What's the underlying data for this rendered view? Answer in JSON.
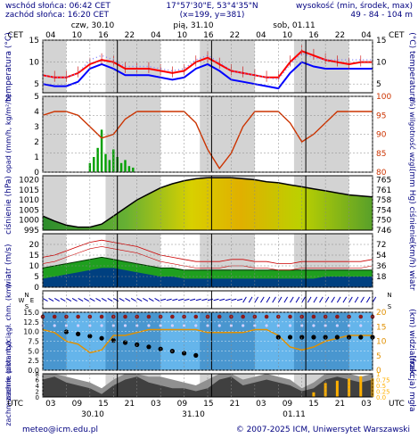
{
  "header": {
    "sunrise": "wschód słońca: 06:42 CET",
    "sunset": "zachód słońca: 16:20 CET",
    "coords": "17°57'30\"E, 53°4'35\"N",
    "grid": "(x=199, y=381)",
    "elev_label": "wysokość (min, środek, max)",
    "elev_values": "49 - 84 - 104 m"
  },
  "footer": {
    "email": "meteo@icm.edu.pl",
    "copyright": "© 2007-2025 ICM, Uniwersytet Warszawski"
  },
  "colors": {
    "night_band": "#d3d3d3",
    "temp_red": "#ff0000",
    "temp_blue": "#0000ff",
    "humidity": "#cc3300",
    "precip": "#00a000",
    "wind_fill": "#1f9f1f",
    "wind_dark": "#004080",
    "cloud_sky": "#4aa8e8",
    "visibility": "#e09000",
    "fog": "#ffb000"
  },
  "chart_data": [
    {
      "type": "line",
      "panel": "temperature",
      "title": "",
      "day_labels": [
        "czw, 30.10",
        "pią, 31.10",
        "sob, 01.11"
      ],
      "top_hours": [
        "04",
        "10",
        "16",
        "22",
        "04",
        "10",
        "16",
        "22",
        "04",
        "10",
        "16",
        "22",
        "04"
      ],
      "left_unit": "CET",
      "right_unit": "CET",
      "ylabel_left": "temperatura (°C)",
      "ylabel_right": "(°C) temperatura",
      "ylim": [
        3,
        15
      ],
      "yticks": [
        5,
        10,
        15
      ],
      "x_hours_from_start": [
        0,
        3,
        6,
        9,
        12,
        15,
        18,
        21,
        24,
        27,
        30,
        33,
        36,
        39,
        42,
        45,
        48,
        51,
        54,
        57,
        60,
        63,
        66,
        69,
        72,
        75,
        78,
        81,
        84
      ],
      "series": [
        {
          "name": "",
          "values": [
            7.0,
            6.5,
            6.5,
            7.5,
            9.5,
            10.5,
            10.0,
            8.5,
            8.5,
            8.5,
            8.0,
            7.5,
            8.0,
            10.0,
            11.0,
            9.5,
            8.0,
            7.5,
            7.0,
            6.5,
            6.5,
            10.0,
            12.5,
            11.5,
            10.5,
            10.0,
            9.5,
            10.0,
            10.0
          ]
        },
        {
          "name": "",
          "values": [
            5.0,
            4.5,
            4.5,
            5.5,
            8.5,
            9.5,
            8.5,
            7.0,
            7.0,
            7.0,
            6.5,
            6.0,
            6.5,
            8.5,
            9.5,
            8.0,
            6.0,
            5.5,
            5.0,
            4.5,
            4.0,
            7.5,
            10.0,
            9.0,
            8.5,
            8.5,
            8.5,
            8.5,
            8.5
          ]
        }
      ]
    },
    {
      "type": "bar",
      "panel": "precipitation_humidity",
      "ylabel_left": "opad (mm/h, kg/m²/h)",
      "ylabel_right": "(%) wilgotność wzgl.",
      "ylim_left": [
        0,
        5
      ],
      "yticks_left": [
        0,
        1,
        2,
        3,
        4,
        5
      ],
      "ylim_right": [
        80,
        100
      ],
      "yticks_right": [
        80,
        85,
        90,
        95,
        100
      ],
      "humidity": [
        95,
        96,
        96,
        95,
        92,
        89,
        90,
        94,
        96,
        96,
        96,
        96,
        96,
        93,
        86,
        81,
        85,
        92,
        96,
        96,
        96,
        93,
        88,
        90,
        93,
        96,
        96,
        96,
        96
      ],
      "precip": [
        0,
        0,
        0,
        0,
        0,
        0,
        0,
        0,
        0,
        0,
        0,
        0,
        0,
        0,
        0,
        0,
        0,
        0,
        0,
        0,
        0,
        0,
        0,
        0,
        0,
        0,
        0,
        0,
        0
      ],
      "precip_burst": {
        "hours": [
          12,
          13,
          14,
          15,
          16,
          17,
          18,
          19,
          20,
          21,
          22,
          23
        ],
        "values": [
          0.6,
          1.0,
          1.6,
          2.8,
          1.2,
          0.8,
          1.5,
          1.0,
          0.6,
          0.8,
          0.4,
          0.3
        ]
      }
    },
    {
      "type": "area",
      "panel": "pressure",
      "ylabel_left": "ciśnienie (hPa)",
      "ylabel_right": "(mm Hg) ciśnienie",
      "ylim_left": [
        995,
        1022
      ],
      "yticks_left": [
        995,
        1000,
        1005,
        1010,
        1015,
        1020
      ],
      "yticks_right": [
        746,
        750,
        754,
        758,
        761,
        765
      ],
      "values": [
        1002.0,
        999.5,
        997.5,
        996.5,
        996.5,
        998.0,
        1002.0,
        1006.0,
        1010.0,
        1013.0,
        1016.0,
        1018.0,
        1019.5,
        1020.5,
        1021.0,
        1021.0,
        1021.0,
        1020.5,
        1020.0,
        1019.0,
        1018.5,
        1017.5,
        1016.5,
        1015.5,
        1014.5,
        1013.5,
        1012.5,
        1012.0,
        1011.5
      ]
    },
    {
      "type": "line",
      "panel": "wind",
      "ylabel_left": "wiatr (m/s)",
      "ylabel_right": "(km/h) wiatr",
      "ylim_left": [
        0,
        25
      ],
      "yticks_left": [
        0,
        5,
        10,
        15,
        20
      ],
      "yticks_right": [
        18,
        36,
        54,
        72
      ],
      "gusts": [
        14,
        15,
        17,
        19,
        21,
        22,
        21,
        20,
        19,
        17,
        15,
        14,
        13,
        12,
        12,
        12,
        13,
        13,
        12,
        12,
        11,
        11,
        12,
        12,
        12,
        12,
        12,
        12,
        13
      ],
      "speed_max": [
        9,
        10,
        11,
        12,
        13,
        14,
        13,
        12,
        11,
        10,
        9,
        9,
        8,
        8,
        8,
        8,
        8,
        8,
        8,
        8,
        8,
        8,
        8,
        8,
        8,
        8,
        8,
        8,
        8
      ],
      "speed": [
        4,
        5,
        6,
        7,
        8,
        9,
        9,
        8,
        7,
        6,
        5,
        5,
        4,
        4,
        4,
        4,
        4,
        4,
        4,
        4,
        4,
        4,
        4,
        4,
        5,
        5,
        5,
        5,
        5
      ]
    },
    {
      "type": "scatter",
      "panel": "wind_direction",
      "compass": [
        "N",
        "W",
        "E",
        "S"
      ]
    },
    {
      "type": "scatter",
      "panel": "clouds_visibility",
      "ylabel_left": "zachm. pion. rozciągł. chm. (km)",
      "ylabel_right": "(km) widzialność",
      "yticks_left": [
        "0.0",
        "2.5",
        "5.0",
        "7.5",
        "10.0",
        "12.5",
        "15.0"
      ],
      "yticks_right": [
        0,
        5,
        10,
        15,
        20
      ],
      "visibility": [
        14,
        13,
        10,
        9,
        6,
        7,
        12,
        12,
        13,
        14,
        14,
        14,
        14,
        14,
        13,
        13,
        13,
        13,
        14,
        14,
        12,
        8,
        7,
        8,
        10,
        11,
        12,
        12,
        12
      ]
    },
    {
      "type": "area",
      "panel": "cloud_cover_fog",
      "ylabel_left": "zachmurzenie (oktanty)",
      "ylabel_right": "(frakcja) mgła",
      "yticks_left": [
        0,
        2,
        4,
        6,
        8
      ],
      "yticks_right": [
        "0.0",
        "0.25",
        "0.5",
        "0.75",
        "1"
      ],
      "cloud_total": [
        8,
        8,
        7,
        6,
        5,
        3,
        6,
        8,
        8,
        7,
        7,
        6,
        5,
        4,
        6,
        8,
        8,
        6,
        7,
        8,
        7,
        6,
        3,
        5,
        8,
        8,
        8,
        7,
        8
      ],
      "cloud_low": [
        6,
        7,
        5,
        4,
        3,
        1,
        4,
        6,
        7,
        5,
        4,
        3,
        3,
        2,
        3,
        6,
        7,
        4,
        5,
        6,
        5,
        4,
        2,
        3,
        6,
        7,
        6,
        5,
        6
      ],
      "fog_fraction": [
        0,
        0,
        0,
        0,
        0,
        0,
        0,
        0,
        0,
        0,
        0,
        0,
        0,
        0,
        0,
        0,
        0,
        0,
        0,
        0,
        0,
        0,
        0,
        0.2,
        0.6,
        0.7,
        0.8,
        0.9,
        0.8
      ]
    }
  ],
  "bottom_axis": {
    "unit_left": "UTC",
    "unit_right": "UTC",
    "hours": [
      "03",
      "09",
      "15",
      "21",
      "03",
      "09",
      "15",
      "21",
      "03",
      "09",
      "15",
      "21",
      "03"
    ],
    "dates": [
      "30.10",
      "31.10",
      "01.11"
    ]
  }
}
